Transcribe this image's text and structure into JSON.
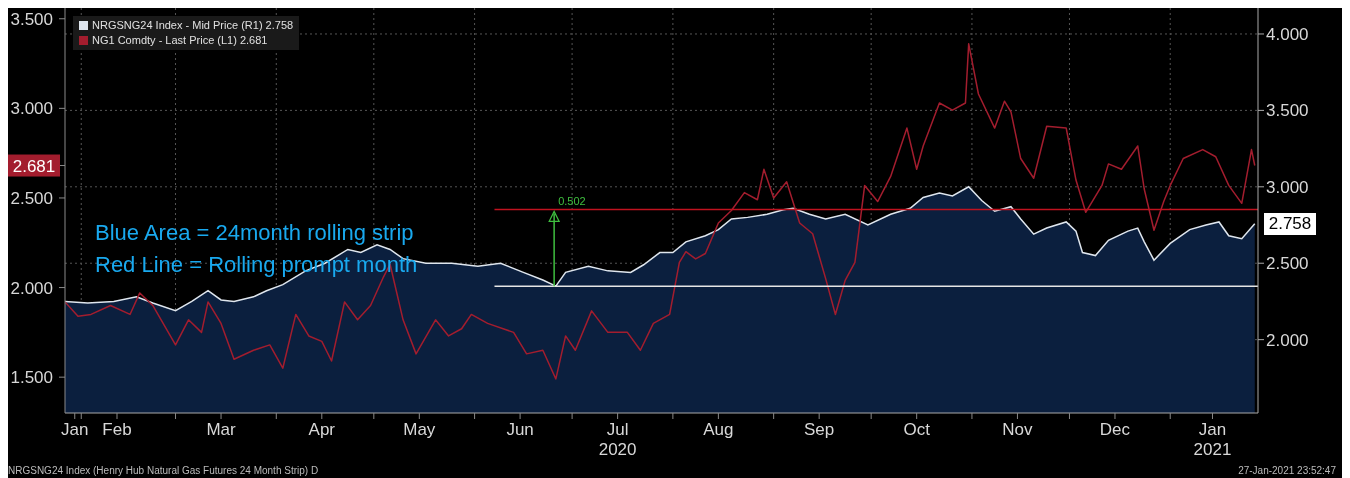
{
  "chart_data": {
    "type": "line",
    "annotations": [
      "Blue Area = 24month rolling strip",
      "Red Line = Rolling prompt month",
      "0.502",
      "NRGSNG24 Index (Henry Hub Natural Gas Futures 24 Month Strip) D",
      "27-Jan-2021 23:52:47"
    ],
    "series": [
      {
        "name": "NRGSNG24 Index - Mid Price (R1) 2.758",
        "type": "area",
        "axis": "y2",
        "value_labels": [
          null,
          null,
          null,
          null,
          null,
          null,
          null,
          null,
          null,
          null,
          null,
          null,
          null,
          null,
          null,
          null,
          null,
          null,
          null,
          null,
          null,
          null,
          null,
          null,
          null,
          null,
          null,
          null,
          null,
          null,
          null,
          null,
          null,
          null,
          null,
          null,
          null,
          null,
          null,
          null,
          null,
          null,
          null,
          null,
          null,
          null,
          null,
          null,
          null,
          null,
          null,
          null,
          null,
          null,
          null,
          null,
          null,
          null,
          null,
          null,
          null,
          null,
          null,
          null,
          null,
          null,
          null,
          null,
          null,
          null,
          null,
          null,
          null,
          "2.758"
        ],
        "color": "#dfe6ee",
        "x": [
          "2020-01-27",
          "2020-02-03",
          "2020-02-11",
          "2020-02-18",
          "2020-02-23",
          "2020-03-01",
          "2020-03-06",
          "2020-03-11",
          "2020-03-15",
          "2020-03-19",
          "2020-03-25",
          "2020-03-29",
          "2020-04-03",
          "2020-04-10",
          "2020-04-16",
          "2020-04-23",
          "2020-04-27",
          "2020-05-02",
          "2020-05-06",
          "2020-05-10",
          "2020-05-17",
          "2020-05-25",
          "2020-06-02",
          "2020-06-09",
          "2020-06-16",
          "2020-06-22",
          "2020-06-26",
          "2020-06-29",
          "2020-07-06",
          "2020-07-12",
          "2020-07-19",
          "2020-07-23",
          "2020-07-28",
          "2020-08-01",
          "2020-08-05",
          "2020-08-11",
          "2020-08-15",
          "2020-08-19",
          "2020-08-24",
          "2020-08-30",
          "2020-09-04",
          "2020-09-07",
          "2020-09-12",
          "2020-09-17",
          "2020-09-23",
          "2020-09-30",
          "2020-10-07",
          "2020-10-13",
          "2020-10-17",
          "2020-10-22",
          "2020-10-26",
          "2020-10-31",
          "2020-11-04",
          "2020-11-08",
          "2020-11-13",
          "2020-11-16",
          "2020-11-20",
          "2020-11-24",
          "2020-11-30",
          "2020-12-03",
          "2020-12-05",
          "2020-12-09",
          "2020-12-13",
          "2020-12-19",
          "2020-12-22",
          "2020-12-24",
          "2020-12-27",
          "2021-01-01",
          "2021-01-07",
          "2021-01-12",
          "2021-01-16",
          "2021-01-19",
          "2021-01-23",
          "2021-01-27"
        ],
        "values": [
          2.25,
          2.24,
          2.25,
          2.28,
          2.24,
          2.19,
          2.25,
          2.32,
          2.26,
          2.25,
          2.28,
          2.32,
          2.36,
          2.45,
          2.5,
          2.59,
          2.57,
          2.62,
          2.59,
          2.53,
          2.5,
          2.5,
          2.48,
          2.5,
          2.44,
          2.39,
          2.35,
          2.44,
          2.48,
          2.45,
          2.44,
          2.49,
          2.57,
          2.57,
          2.64,
          2.68,
          2.72,
          2.79,
          2.8,
          2.82,
          2.85,
          2.86,
          2.82,
          2.79,
          2.82,
          2.75,
          2.82,
          2.86,
          2.93,
          2.96,
          2.94,
          3.0,
          2.91,
          2.84,
          2.87,
          2.79,
          2.69,
          2.73,
          2.77,
          2.71,
          2.57,
          2.55,
          2.65,
          2.71,
          2.73,
          2.64,
          2.52,
          2.63,
          2.72,
          2.75,
          2.77,
          2.68,
          2.66,
          2.758
        ]
      },
      {
        "name": "NG1 Comdty - Last Price (L1) 2.681",
        "axis": "y",
        "color": "#a31d2e",
        "x": [
          "2020-01-27",
          "2020-01-31",
          "2020-02-04",
          "2020-02-10",
          "2020-02-16",
          "2020-02-19",
          "2020-02-23",
          "2020-03-01",
          "2020-03-05",
          "2020-03-09",
          "2020-03-11",
          "2020-03-15",
          "2020-03-19",
          "2020-03-25",
          "2020-03-30",
          "2020-04-03",
          "2020-04-07",
          "2020-04-11",
          "2020-04-15",
          "2020-04-18",
          "2020-04-22",
          "2020-04-26",
          "2020-04-30",
          "2020-05-04",
          "2020-05-06",
          "2020-05-10",
          "2020-05-14",
          "2020-05-20",
          "2020-05-24",
          "2020-05-28",
          "2020-05-31",
          "2020-06-05",
          "2020-06-13",
          "2020-06-17",
          "2020-06-22",
          "2020-06-26",
          "2020-06-29",
          "2020-07-02",
          "2020-07-07",
          "2020-07-12",
          "2020-07-18",
          "2020-07-22",
          "2020-07-26",
          "2020-07-31",
          "2020-08-03",
          "2020-08-05",
          "2020-08-08",
          "2020-08-11",
          "2020-08-15",
          "2020-08-19",
          "2020-08-23",
          "2020-08-27",
          "2020-08-29",
          "2020-09-01",
          "2020-09-05",
          "2020-09-09",
          "2020-09-13",
          "2020-09-17",
          "2020-09-20",
          "2020-09-23",
          "2020-09-26",
          "2020-09-29",
          "2020-10-03",
          "2020-10-07",
          "2020-10-12",
          "2020-10-15",
          "2020-10-17",
          "2020-10-22",
          "2020-10-26",
          "2020-10-30",
          "2020-10-31",
          "2020-11-03",
          "2020-11-08",
          "2020-11-11",
          "2020-11-13",
          "2020-11-16",
          "2020-11-20",
          "2020-11-24",
          "2020-11-30",
          "2020-12-03",
          "2020-12-06",
          "2020-12-11",
          "2020-12-13",
          "2020-12-17",
          "2020-12-22",
          "2020-12-24",
          "2020-12-27",
          "2020-12-30",
          "2021-01-01",
          "2021-01-05",
          "2021-01-11",
          "2021-01-15",
          "2021-01-19",
          "2021-01-23",
          "2021-01-26",
          "2021-01-27"
        ],
        "values": [
          1.92,
          1.84,
          1.85,
          1.9,
          1.85,
          1.97,
          1.9,
          1.68,
          1.82,
          1.75,
          1.92,
          1.8,
          1.6,
          1.65,
          1.68,
          1.55,
          1.85,
          1.73,
          1.7,
          1.59,
          1.92,
          1.82,
          1.9,
          2.06,
          2.13,
          1.82,
          1.63,
          1.82,
          1.73,
          1.77,
          1.85,
          1.8,
          1.75,
          1.63,
          1.65,
          1.49,
          1.73,
          1.65,
          1.87,
          1.75,
          1.75,
          1.65,
          1.8,
          1.85,
          2.14,
          2.2,
          2.16,
          2.19,
          2.36,
          2.43,
          2.53,
          2.49,
          2.66,
          2.5,
          2.59,
          2.36,
          2.3,
          2.05,
          1.85,
          2.04,
          2.14,
          2.57,
          2.48,
          2.62,
          2.89,
          2.66,
          2.79,
          3.03,
          2.99,
          3.03,
          3.36,
          3.08,
          2.89,
          3.04,
          2.98,
          2.72,
          2.61,
          2.9,
          2.89,
          2.6,
          2.42,
          2.57,
          2.69,
          2.66,
          2.79,
          2.55,
          2.32,
          2.48,
          2.57,
          2.72,
          2.77,
          2.73,
          2.57,
          2.47,
          2.77,
          2.681
        ]
      }
    ],
    "xlim": [
      "2020-01-27",
      "2021-01-28"
    ],
    "xticks": [
      {
        "value": "2020-01-30",
        "label": "Jan"
      },
      {
        "value": "2020-02-12",
        "label": "Feb"
      },
      {
        "value": "2020-03-15",
        "label": "Mar"
      },
      {
        "value": "2020-04-15",
        "label": "Apr"
      },
      {
        "value": "2020-05-15",
        "label": "May"
      },
      {
        "value": "2020-06-15",
        "label": "Jun"
      },
      {
        "value": "2020-07-15",
        "label": "Jul\n2020"
      },
      {
        "value": "2020-08-15",
        "label": "Aug"
      },
      {
        "value": "2020-09-15",
        "label": "Sep"
      },
      {
        "value": "2020-10-15",
        "label": "Oct"
      },
      {
        "value": "2020-11-15",
        "label": "Nov"
      },
      {
        "value": "2020-12-15",
        "label": "Dec"
      },
      {
        "value": "2021-01-14",
        "label": "Jan\n2021"
      },
      {
        "value": "2020-02-01",
        "label": null
      },
      {
        "value": "2020-03-01",
        "label": null
      },
      {
        "value": "2020-04-01",
        "label": null
      },
      {
        "value": "2020-05-01",
        "label": null
      },
      {
        "value": "2020-06-01",
        "label": null
      },
      {
        "value": "2020-07-01",
        "label": null
      },
      {
        "value": "2020-08-01",
        "label": null
      },
      {
        "value": "2020-09-01",
        "label": null
      },
      {
        "value": "2020-10-01",
        "label": null
      },
      {
        "value": "2020-11-01",
        "label": null
      },
      {
        "value": "2020-12-01",
        "label": null
      },
      {
        "value": "2021-01-01",
        "label": null
      }
    ],
    "ylim": [
      1.3,
      3.56
    ],
    "yticks": [
      {
        "value": 1.5,
        "label": "1.500"
      },
      {
        "value": 2,
        "label": "2.000"
      },
      {
        "value": 2.5,
        "label": "2.500"
      },
      {
        "value": 2.681,
        "label": "2.681"
      },
      {
        "value": 3,
        "label": "3.000"
      },
      {
        "value": 3.5,
        "label": "3.500"
      }
    ],
    "y2lim": [
      1.52,
      4.17
    ],
    "y2ticks": [
      {
        "value": 2,
        "label": "2.000"
      },
      {
        "value": 2.5,
        "label": "2.500"
      },
      {
        "value": 3,
        "label": "3.000"
      },
      {
        "value": 3.5,
        "label": "3.500"
      },
      {
        "value": 4,
        "label": "4.000"
      }
    ],
    "ref_lines": [
      {
        "axis": "y2",
        "value": 2.852,
        "color": "#c0121f"
      },
      {
        "axis": "y2",
        "value": 2.35,
        "color": "#e6e6e6"
      }
    ],
    "grid": true,
    "legend": "top left"
  }
}
